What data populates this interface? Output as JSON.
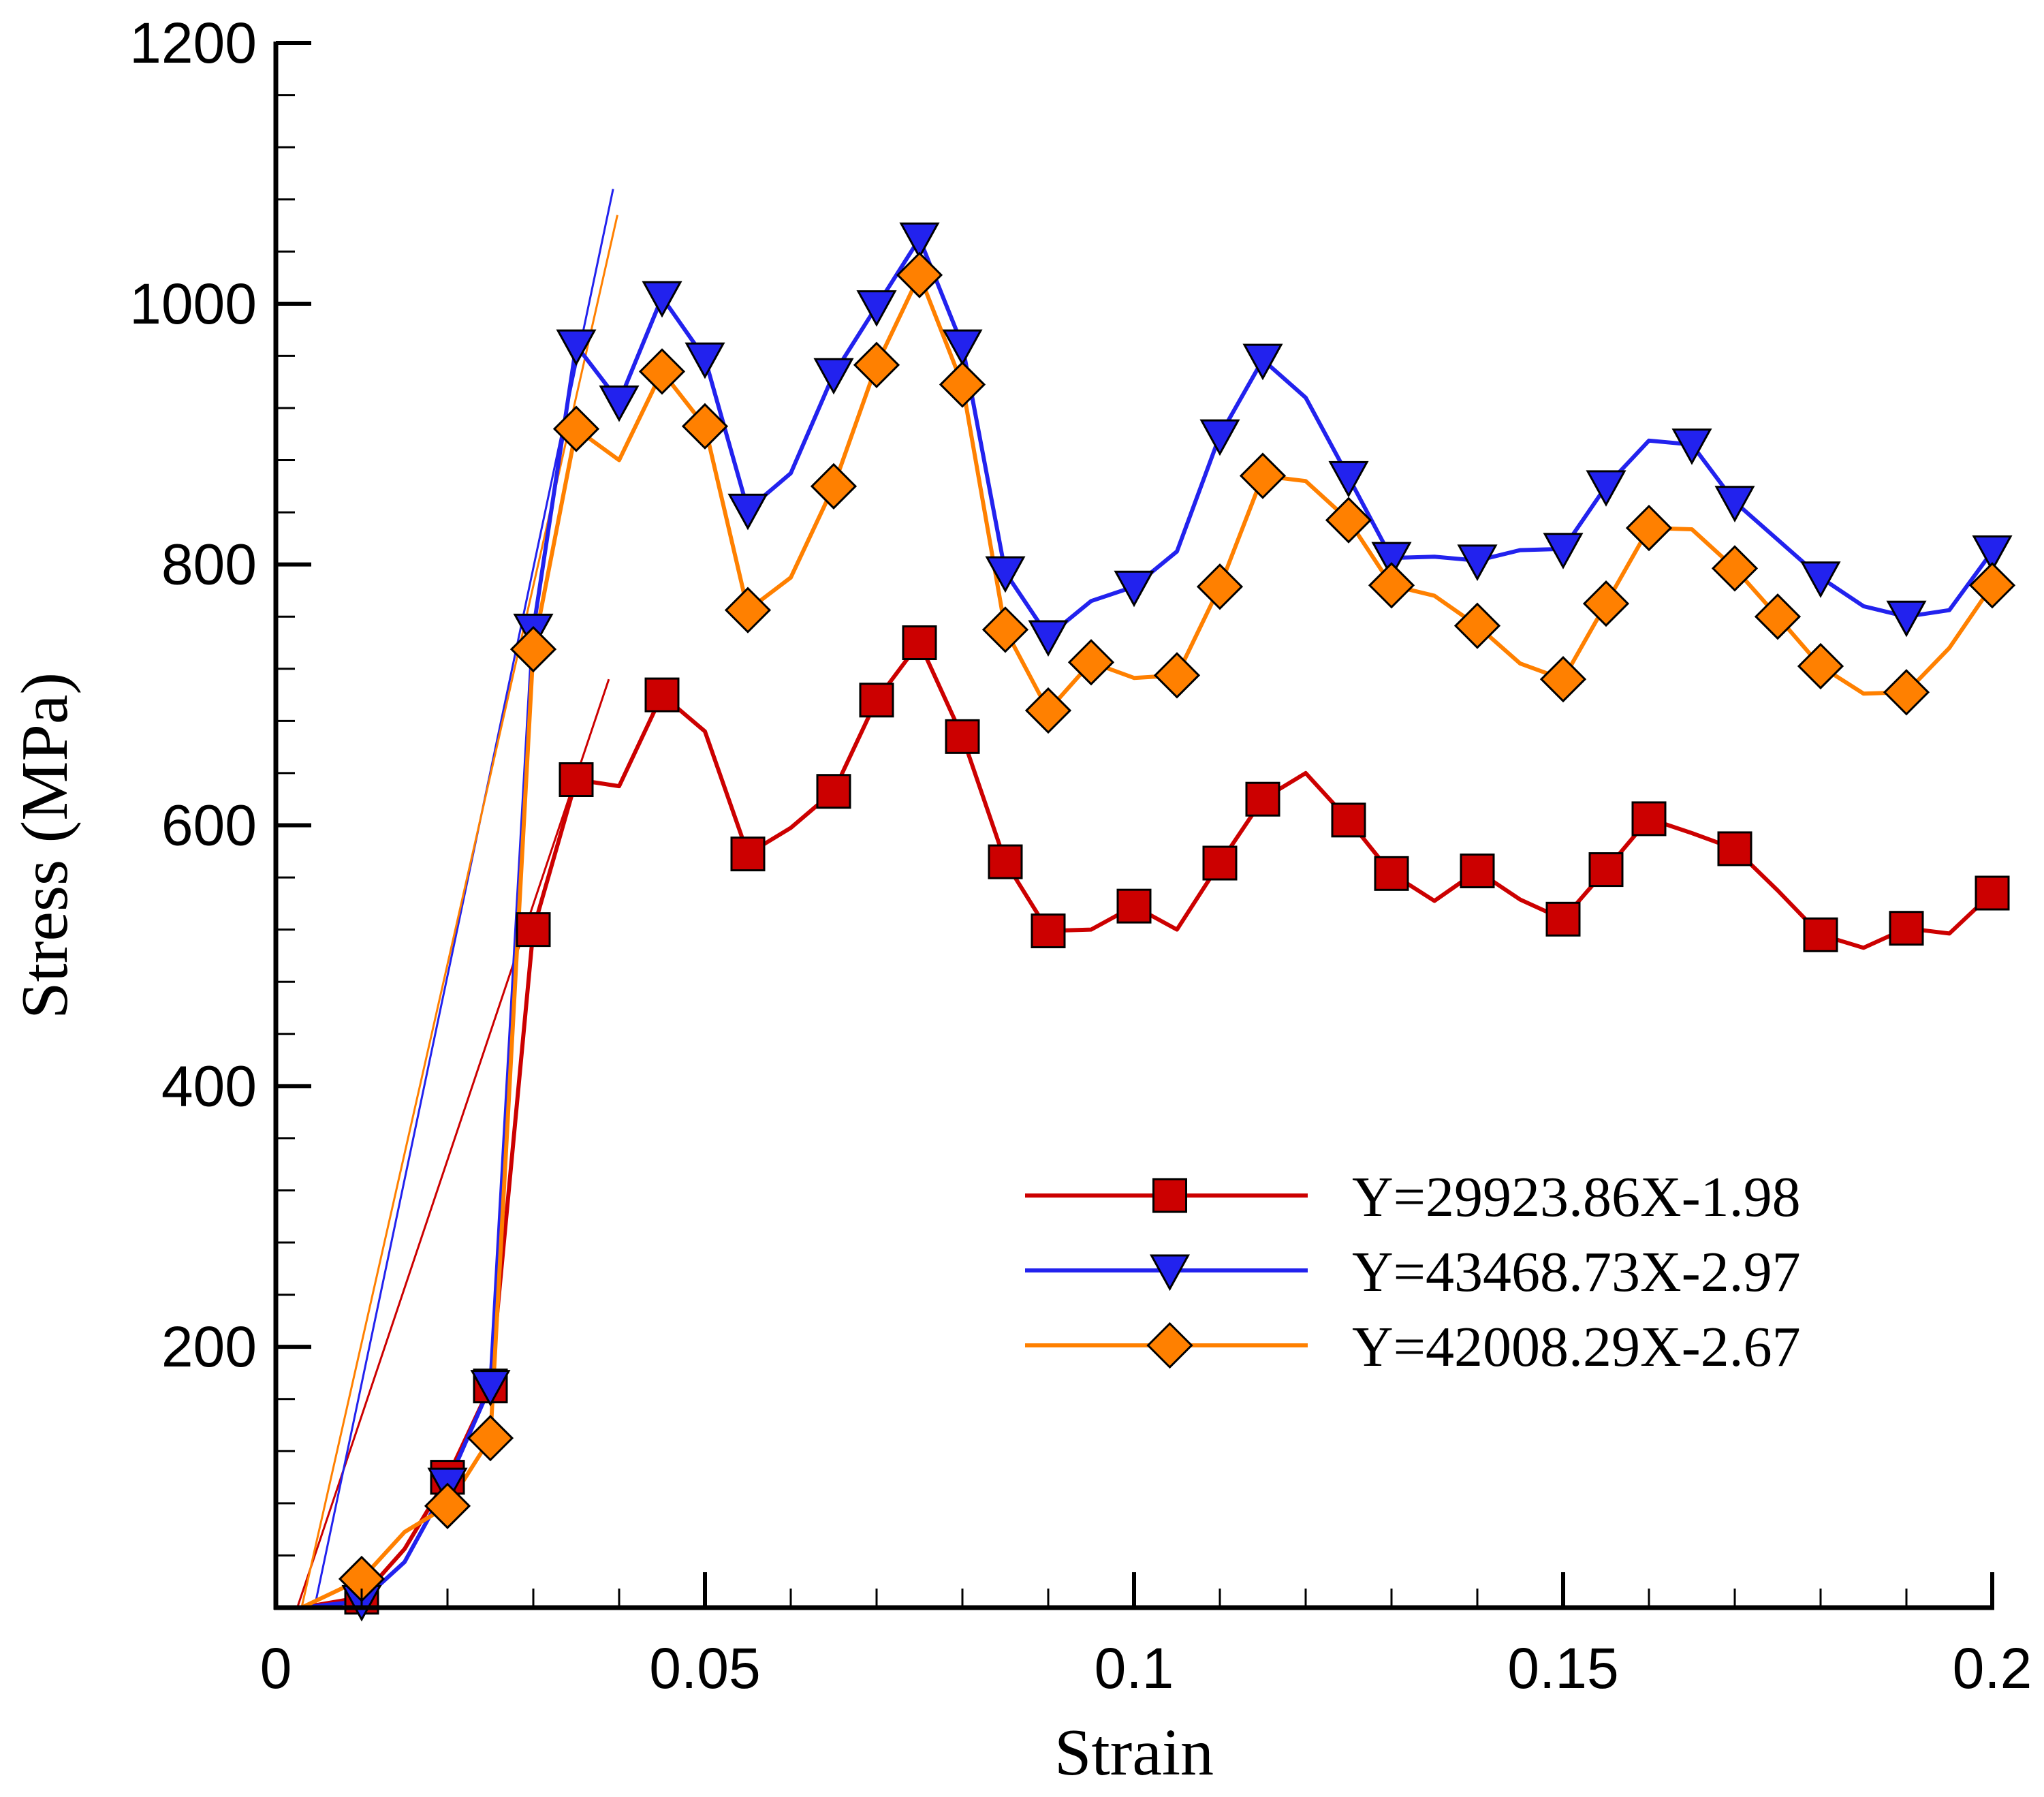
{
  "chart_data": {
    "type": "line",
    "xlabel": "Strain",
    "ylabel": "Stress (MPa)",
    "xlim": [
      0,
      0.2
    ],
    "ylim": [
      0,
      1200
    ],
    "x_ticks": [
      0,
      0.05,
      0.1,
      0.15,
      0.2
    ],
    "x_tick_labels": [
      "0",
      "0.05",
      "0.1",
      "0.15",
      "0.2"
    ],
    "y_ticks": [
      200,
      400,
      600,
      800,
      1000,
      1200
    ],
    "y_tick_labels": [
      "200",
      "400",
      "600",
      "800",
      "1000",
      "1200"
    ],
    "grid": false,
    "legend_position": "bottom-right",
    "series": [
      {
        "name": "Y=29923.86X-1.98",
        "color": "#cc0000",
        "marker": "square",
        "marker_fill": "#cc0000",
        "points": [
          [
            0.003,
            0
          ],
          [
            0.01,
            8
          ],
          [
            0.015,
            45
          ],
          [
            0.02,
            100
          ],
          [
            0.025,
            170
          ],
          [
            0.03,
            520
          ],
          [
            0.035,
            635
          ],
          [
            0.04,
            630
          ],
          [
            0.045,
            700
          ],
          [
            0.05,
            672
          ],
          [
            0.055,
            578
          ],
          [
            0.06,
            598
          ],
          [
            0.065,
            626
          ],
          [
            0.07,
            696
          ],
          [
            0.075,
            740
          ],
          [
            0.08,
            668
          ],
          [
            0.085,
            572
          ],
          [
            0.09,
            519
          ],
          [
            0.095,
            520
          ],
          [
            0.1,
            538
          ],
          [
            0.105,
            520
          ],
          [
            0.11,
            571
          ],
          [
            0.115,
            620
          ],
          [
            0.12,
            640
          ],
          [
            0.125,
            604
          ],
          [
            0.13,
            563
          ],
          [
            0.135,
            542
          ],
          [
            0.14,
            565
          ],
          [
            0.145,
            543
          ],
          [
            0.15,
            528
          ],
          [
            0.155,
            566
          ],
          [
            0.16,
            605
          ],
          [
            0.165,
            594
          ],
          [
            0.17,
            582
          ],
          [
            0.175,
            550
          ],
          [
            0.18,
            516
          ],
          [
            0.185,
            506
          ],
          [
            0.19,
            521
          ],
          [
            0.195,
            517
          ],
          [
            0.2,
            548
          ]
        ],
        "marker_points": [
          [
            0.01,
            8
          ],
          [
            0.02,
            100
          ],
          [
            0.025,
            170
          ],
          [
            0.03,
            520
          ],
          [
            0.035,
            635
          ],
          [
            0.045,
            700
          ],
          [
            0.055,
            578
          ],
          [
            0.065,
            626
          ],
          [
            0.07,
            696
          ],
          [
            0.075,
            740
          ],
          [
            0.08,
            668
          ],
          [
            0.085,
            572
          ],
          [
            0.09,
            519
          ],
          [
            0.1,
            538
          ],
          [
            0.11,
            571
          ],
          [
            0.115,
            620
          ],
          [
            0.125,
            604
          ],
          [
            0.13,
            563
          ],
          [
            0.14,
            565
          ],
          [
            0.15,
            528
          ],
          [
            0.155,
            566
          ],
          [
            0.16,
            605
          ],
          [
            0.17,
            582
          ],
          [
            0.18,
            516
          ],
          [
            0.19,
            521
          ],
          [
            0.2,
            548
          ]
        ],
        "fit_line": {
          "x_start": 0.0025,
          "x_end": 0.0388,
          "y_start": 0,
          "y_end": 712
        }
      },
      {
        "name": "Y=43468.73X-2.97",
        "color": "#2222ee",
        "marker": "triangle-down",
        "marker_fill": "#2222ee",
        "points": [
          [
            0.003,
            0
          ],
          [
            0.01,
            5
          ],
          [
            0.015,
            35
          ],
          [
            0.02,
            95
          ],
          [
            0.025,
            170
          ],
          [
            0.03,
            750
          ],
          [
            0.035,
            968
          ],
          [
            0.04,
            925
          ],
          [
            0.045,
            1005
          ],
          [
            0.05,
            958
          ],
          [
            0.055,
            842
          ],
          [
            0.06,
            870
          ],
          [
            0.065,
            946
          ],
          [
            0.07,
            998
          ],
          [
            0.075,
            1050
          ],
          [
            0.08,
            968
          ],
          [
            0.085,
            794
          ],
          [
            0.09,
            745
          ],
          [
            0.095,
            772
          ],
          [
            0.1,
            783
          ],
          [
            0.105,
            810
          ],
          [
            0.11,
            899
          ],
          [
            0.115,
            957
          ],
          [
            0.12,
            928
          ],
          [
            0.125,
            867
          ],
          [
            0.13,
            805
          ],
          [
            0.135,
            806
          ],
          [
            0.14,
            803
          ],
          [
            0.145,
            811
          ],
          [
            0.15,
            812
          ],
          [
            0.155,
            860
          ],
          [
            0.16,
            895
          ],
          [
            0.165,
            892
          ],
          [
            0.17,
            848
          ],
          [
            0.175,
            819
          ],
          [
            0.18,
            790
          ],
          [
            0.185,
            768
          ],
          [
            0.19,
            760
          ],
          [
            0.195,
            765
          ],
          [
            0.2,
            810
          ]
        ],
        "marker_points": [
          [
            0.01,
            5
          ],
          [
            0.02,
            95
          ],
          [
            0.025,
            170
          ],
          [
            0.03,
            750
          ],
          [
            0.035,
            968
          ],
          [
            0.04,
            925
          ],
          [
            0.045,
            1005
          ],
          [
            0.05,
            958
          ],
          [
            0.055,
            842
          ],
          [
            0.065,
            946
          ],
          [
            0.07,
            998
          ],
          [
            0.075,
            1050
          ],
          [
            0.08,
            968
          ],
          [
            0.085,
            794
          ],
          [
            0.09,
            745
          ],
          [
            0.1,
            783
          ],
          [
            0.11,
            899
          ],
          [
            0.115,
            957
          ],
          [
            0.125,
            867
          ],
          [
            0.13,
            805
          ],
          [
            0.14,
            803
          ],
          [
            0.15,
            812
          ],
          [
            0.155,
            860
          ],
          [
            0.165,
            892
          ],
          [
            0.17,
            848
          ],
          [
            0.18,
            790
          ],
          [
            0.19,
            760
          ],
          [
            0.2,
            810
          ]
        ],
        "fit_line": {
          "x_start": 0.0045,
          "x_end": 0.0393,
          "y_start": 0,
          "y_end": 1088
        }
      },
      {
        "name": "Y=42008.29X-2.67",
        "color": "#ff8000",
        "marker": "diamond",
        "marker_fill": "#ff8000",
        "points": [
          [
            0.003,
            0
          ],
          [
            0.01,
            22
          ],
          [
            0.015,
            58
          ],
          [
            0.02,
            78
          ],
          [
            0.025,
            130
          ],
          [
            0.03,
            735
          ],
          [
            0.035,
            904
          ],
          [
            0.04,
            880
          ],
          [
            0.045,
            948
          ],
          [
            0.05,
            906
          ],
          [
            0.055,
            765
          ],
          [
            0.06,
            790
          ],
          [
            0.065,
            860
          ],
          [
            0.07,
            953
          ],
          [
            0.075,
            1022
          ],
          [
            0.08,
            938
          ],
          [
            0.085,
            750
          ],
          [
            0.09,
            688
          ],
          [
            0.095,
            725
          ],
          [
            0.1,
            713
          ],
          [
            0.105,
            715
          ],
          [
            0.11,
            783
          ],
          [
            0.115,
            868
          ],
          [
            0.12,
            864
          ],
          [
            0.125,
            834
          ],
          [
            0.13,
            784
          ],
          [
            0.135,
            776
          ],
          [
            0.14,
            753
          ],
          [
            0.145,
            724
          ],
          [
            0.15,
            712
          ],
          [
            0.155,
            770
          ],
          [
            0.16,
            828
          ],
          [
            0.165,
            827
          ],
          [
            0.17,
            797
          ],
          [
            0.175,
            760
          ],
          [
            0.18,
            722
          ],
          [
            0.185,
            701
          ],
          [
            0.19,
            702
          ],
          [
            0.195,
            736
          ],
          [
            0.2,
            784
          ]
        ],
        "marker_points": [
          [
            0.01,
            22
          ],
          [
            0.02,
            78
          ],
          [
            0.025,
            130
          ],
          [
            0.03,
            735
          ],
          [
            0.035,
            904
          ],
          [
            0.045,
            948
          ],
          [
            0.05,
            906
          ],
          [
            0.055,
            765
          ],
          [
            0.065,
            860
          ],
          [
            0.07,
            953
          ],
          [
            0.075,
            1022
          ],
          [
            0.08,
            938
          ],
          [
            0.085,
            750
          ],
          [
            0.09,
            688
          ],
          [
            0.095,
            725
          ],
          [
            0.105,
            715
          ],
          [
            0.11,
            783
          ],
          [
            0.115,
            868
          ],
          [
            0.125,
            834
          ],
          [
            0.13,
            784
          ],
          [
            0.14,
            753
          ],
          [
            0.15,
            712
          ],
          [
            0.155,
            770
          ],
          [
            0.16,
            828
          ],
          [
            0.17,
            797
          ],
          [
            0.175,
            760
          ],
          [
            0.18,
            722
          ],
          [
            0.19,
            702
          ],
          [
            0.2,
            784
          ]
        ],
        "fit_line": {
          "x_start": 0.003,
          "x_end": 0.0398,
          "y_start": 0,
          "y_end": 1068
        }
      }
    ]
  }
}
